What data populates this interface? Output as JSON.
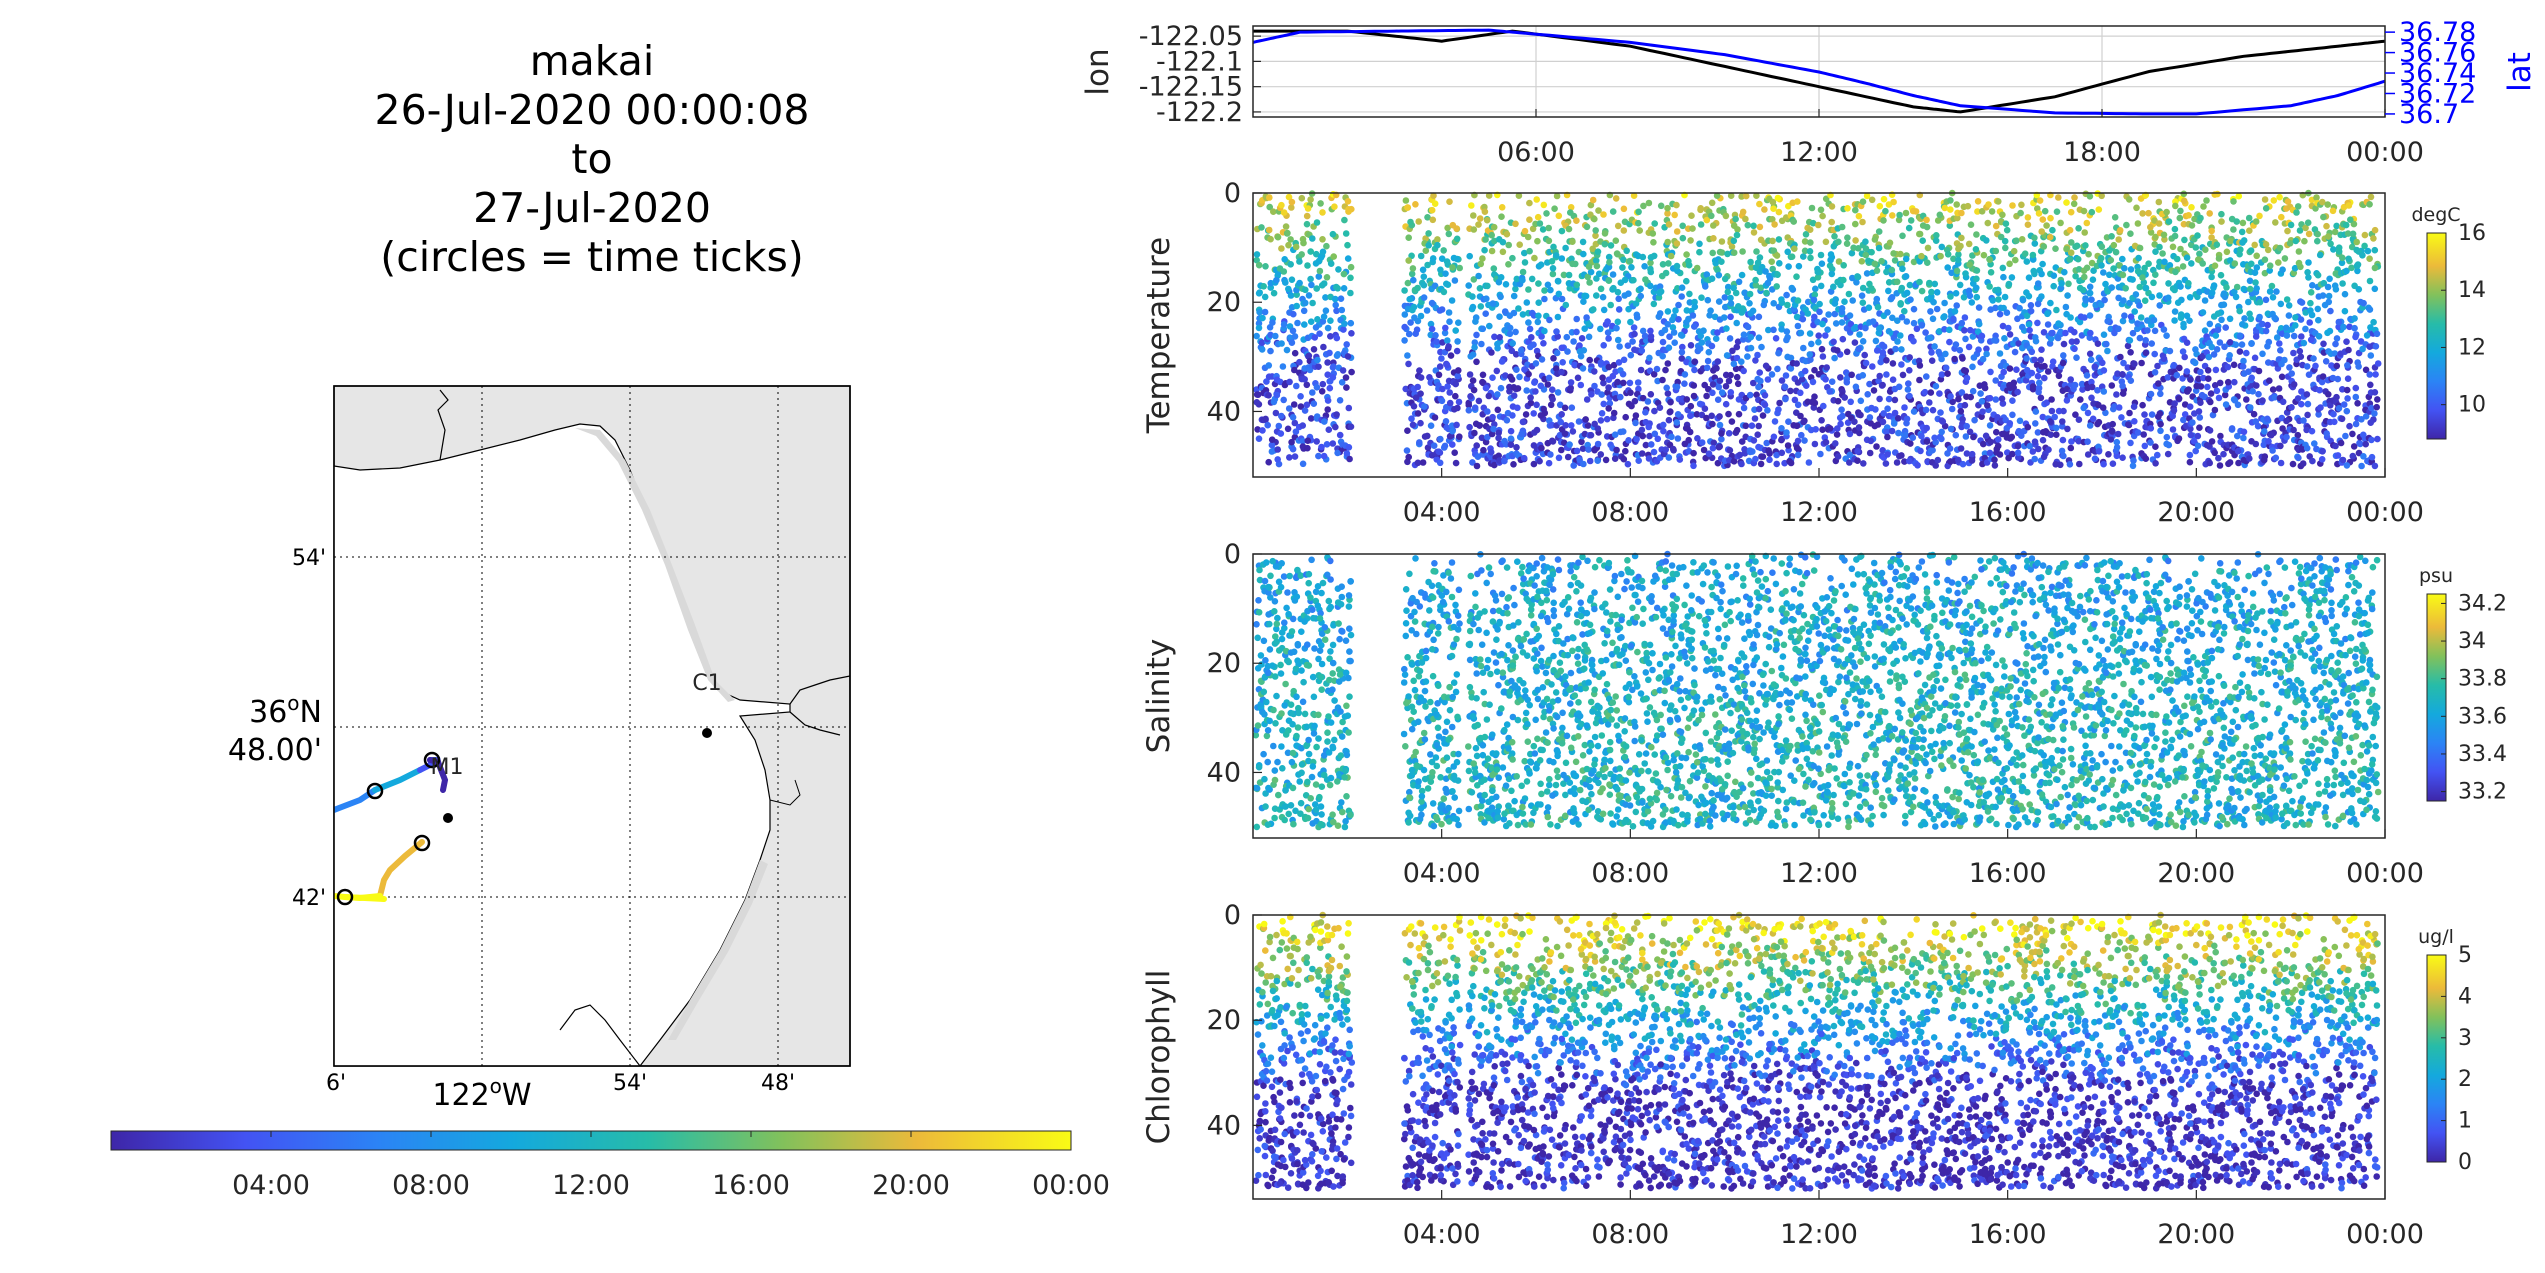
{
  "title": [
    "makai",
    "26-Jul-2020 00:00:08",
    "to",
    "27-Jul-2020",
    "(circles = time ticks)"
  ],
  "map": {
    "lat_ticks": [
      "54'",
      "36°N 48.00'",
      "42'"
    ],
    "lat_major_a": "36",
    "lat_major_sup": "o",
    "lat_major_b": "N",
    "lat_major_c": "48.00'",
    "lon_ticks": [
      "6'",
      "122°W",
      "54'",
      "48'"
    ],
    "lon_major_a": "122",
    "lon_major_sup": "o",
    "lon_major_b": "W",
    "moorings": [
      {
        "label": "C1"
      },
      {
        "label": "M1"
      }
    ],
    "land_color": "#e6e6e6",
    "water_color": "#ffffff"
  },
  "time_colorbar": {
    "ticks": [
      "04:00",
      "08:00",
      "12:00",
      "16:00",
      "20:00",
      "00:00"
    ]
  },
  "chart_data": [
    {
      "type": "line",
      "name": "lon-lat",
      "ylabel": "lon",
      "y2label": "lat",
      "x_ticks": [
        "06:00",
        "12:00",
        "18:00",
        "00:00"
      ],
      "y_ticks": [
        "-122.05",
        "-122.1",
        "-122.15",
        "-122.2"
      ],
      "y2_ticks": [
        "36.78",
        "36.76",
        "36.74",
        "36.72",
        "36.7"
      ],
      "ylim": [
        -122.21,
        -122.03
      ],
      "y2lim": [
        36.697,
        36.786
      ],
      "series": [
        {
          "name": "lon",
          "color": "#000000",
          "x_hours": [
            0,
            2,
            4,
            5.5,
            8,
            10,
            12,
            14,
            15,
            17,
            19,
            21,
            23,
            24
          ],
          "values": [
            -122.04,
            -122.04,
            -122.06,
            -122.04,
            -122.07,
            -122.11,
            -122.15,
            -122.19,
            -122.2,
            -122.17,
            -122.12,
            -122.09,
            -122.07,
            -122.06
          ]
        },
        {
          "name": "lat",
          "color": "#0000ff",
          "x_hours": [
            0,
            1,
            3,
            5,
            6,
            8,
            10,
            12,
            13,
            14,
            15,
            17,
            19,
            20,
            22,
            23,
            24
          ],
          "values": [
            36.77,
            36.78,
            36.781,
            36.782,
            36.778,
            36.77,
            36.758,
            36.741,
            36.73,
            36.718,
            36.708,
            36.701,
            36.7,
            36.7,
            36.708,
            36.718,
            36.732
          ]
        }
      ]
    },
    {
      "type": "scatter",
      "name": "temperature",
      "ylabel": "Temperature",
      "unit": "degC",
      "x_ticks": [
        "04:00",
        "08:00",
        "12:00",
        "16:00",
        "20:00",
        "00:00"
      ],
      "y_ticks": [
        "0",
        "20",
        "40"
      ],
      "ylim": [
        52,
        0
      ],
      "clim": [
        8.8,
        16
      ],
      "cbar_ticks": [
        "16",
        "14",
        "12",
        "10"
      ],
      "profile": {
        "surface": 15.0,
        "bottom": 9.5
      },
      "gaps_hours": [
        [
          2.1,
          3.2
        ]
      ]
    },
    {
      "type": "scatter",
      "name": "salinity",
      "ylabel": "Salinity",
      "unit": "psu",
      "x_ticks": [
        "04:00",
        "08:00",
        "12:00",
        "16:00",
        "20:00",
        "00:00"
      ],
      "y_ticks": [
        "0",
        "20",
        "40"
      ],
      "ylim": [
        52,
        0
      ],
      "clim": [
        33.15,
        34.25
      ],
      "cbar_ticks": [
        "34.2",
        "34",
        "33.8",
        "33.6",
        "33.4",
        "33.2"
      ],
      "profile": {
        "surface": 33.6,
        "bottom": 33.7
      },
      "gaps_hours": [
        [
          2.1,
          3.2
        ]
      ]
    },
    {
      "type": "scatter",
      "name": "chlorophyll",
      "ylabel": "Chlorophyll",
      "unit": "ug/l",
      "x_ticks": [
        "04:00",
        "08:00",
        "12:00",
        "16:00",
        "20:00",
        "00:00"
      ],
      "y_ticks": [
        "0",
        "20",
        "40"
      ],
      "ylim": [
        54,
        0
      ],
      "clim": [
        0,
        5
      ],
      "cbar_ticks": [
        "5",
        "4",
        "3",
        "2",
        "1",
        "0"
      ],
      "profile": {
        "surface": 4.8,
        "bottom": 0.2
      },
      "gaps_hours": [
        [
          2.1,
          3.2
        ]
      ]
    }
  ],
  "colormap": "parula"
}
